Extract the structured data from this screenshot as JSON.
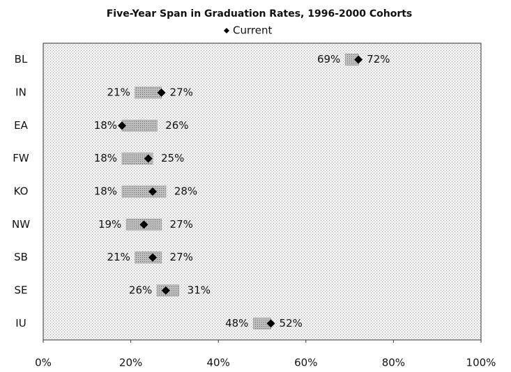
{
  "chart_data": {
    "type": "range-dot",
    "title": "Five-Year Span in Graduation Rates, 1996-2000 Cohorts",
    "categories": [
      "BL",
      "IN",
      "EA",
      "FW",
      "KO",
      "NW",
      "SB",
      "SE",
      "IU"
    ],
    "low": [
      69,
      21,
      18,
      18,
      18,
      19,
      21,
      26,
      48
    ],
    "low_value_labels": [
      "69%",
      "21%",
      "18%",
      "18%",
      "18%",
      "19%",
      "21%",
      "26%",
      "48%"
    ],
    "high": [
      72,
      27,
      26,
      25,
      28,
      27,
      27,
      31,
      52
    ],
    "high_value_labels": [
      "72%",
      "27%",
      "26%",
      "25%",
      "28%",
      "27%",
      "27%",
      "31%",
      "52%"
    ],
    "range_color": "#a8a8a8",
    "series": [
      {
        "name": "Current",
        "color": "#000000",
        "values": [
          72,
          27,
          18,
          24,
          25,
          23,
          25,
          28,
          52
        ]
      }
    ],
    "xlim": [
      0,
      100
    ],
    "xticks": [
      {
        "value": 0,
        "label": "0%"
      },
      {
        "value": 20,
        "label": "20%"
      },
      {
        "value": 40,
        "label": "40%"
      },
      {
        "value": 60,
        "label": "60%"
      },
      {
        "value": 80,
        "label": "80%"
      },
      {
        "value": 100,
        "label": "100%"
      }
    ],
    "legend": "top",
    "grid": false
  }
}
